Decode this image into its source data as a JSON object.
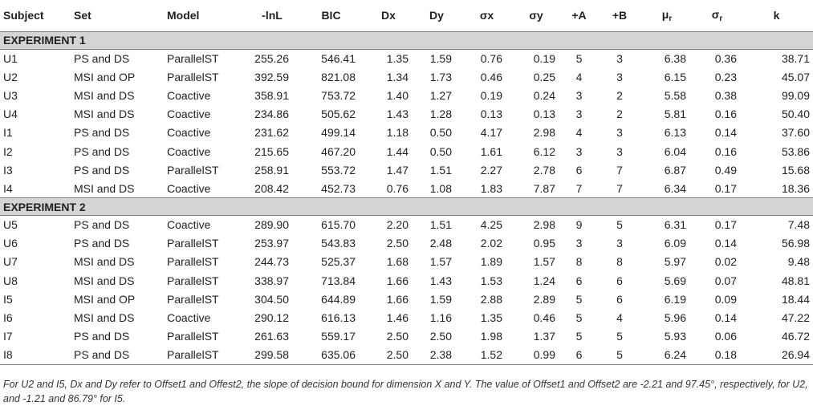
{
  "headers": {
    "subject": "Subject",
    "set": "Set",
    "model": "Model",
    "lnl": "-lnL",
    "bic": "BIC",
    "dx": "Dx",
    "dy": "Dy",
    "sx": "σx",
    "sy": "σy",
    "pa": "+A",
    "pb": "+B",
    "mu": "μ",
    "mu_sub": "r",
    "sr": "σ",
    "sr_sub": "r",
    "k": "k"
  },
  "sections": [
    {
      "title": "EXPERIMENT 1",
      "rows": [
        {
          "subject": "U1",
          "set": "PS and DS",
          "model": "ParallelST",
          "lnl": "255.26",
          "bic": "546.41",
          "dx": "1.35",
          "dy": "1.59",
          "sx": "0.76",
          "sy": "0.19",
          "pa": "5",
          "pb": "3",
          "mu": "6.38",
          "sr": "0.36",
          "k": "38.71"
        },
        {
          "subject": "U2",
          "set": "MSI and OP",
          "model": "ParallelST",
          "lnl": "392.59",
          "bic": "821.08",
          "dx": "1.34",
          "dy": "1.73",
          "sx": "0.46",
          "sy": "0.25",
          "pa": "4",
          "pb": "3",
          "mu": "6.15",
          "sr": "0.23",
          "k": "45.07"
        },
        {
          "subject": "U3",
          "set": "MSI and DS",
          "model": "Coactive",
          "lnl": "358.91",
          "bic": "753.72",
          "dx": "1.40",
          "dy": "1.27",
          "sx": "0.19",
          "sy": "0.24",
          "pa": "3",
          "pb": "2",
          "mu": "5.58",
          "sr": "0.38",
          "k": "99.09"
        },
        {
          "subject": "U4",
          "set": "MSI and DS",
          "model": "Coactive",
          "lnl": "234.86",
          "bic": "505.62",
          "dx": "1.43",
          "dy": "1.28",
          "sx": "0.13",
          "sy": "0.13",
          "pa": "3",
          "pb": "2",
          "mu": "5.81",
          "sr": "0.16",
          "k": "50.40"
        },
        {
          "subject": "I1",
          "set": "PS and DS",
          "model": "Coactive",
          "lnl": "231.62",
          "bic": "499.14",
          "dx": "1.18",
          "dy": "0.50",
          "sx": "4.17",
          "sy": "2.98",
          "pa": "4",
          "pb": "3",
          "mu": "6.13",
          "sr": "0.14",
          "k": "37.60"
        },
        {
          "subject": "I2",
          "set": "PS and DS",
          "model": "Coactive",
          "lnl": "215.65",
          "bic": "467.20",
          "dx": "1.44",
          "dy": "0.50",
          "sx": "1.61",
          "sy": "6.12",
          "pa": "3",
          "pb": "3",
          "mu": "6.04",
          "sr": "0.16",
          "k": "53.86"
        },
        {
          "subject": "I3",
          "set": "PS and DS",
          "model": "ParallelST",
          "lnl": "258.91",
          "bic": "553.72",
          "dx": "1.47",
          "dy": "1.51",
          "sx": "2.27",
          "sy": "2.78",
          "pa": "6",
          "pb": "7",
          "mu": "6.87",
          "sr": "0.49",
          "k": "15.68"
        },
        {
          "subject": "I4",
          "set": "MSI and DS",
          "model": "Coactive",
          "lnl": "208.42",
          "bic": "452.73",
          "dx": "0.76",
          "dy": "1.08",
          "sx": "1.83",
          "sy": "7.87",
          "pa": "7",
          "pb": "7",
          "mu": "6.34",
          "sr": "0.17",
          "k": "18.36"
        }
      ]
    },
    {
      "title": "EXPERIMENT 2",
      "rows": [
        {
          "subject": "U5",
          "set": "PS and DS",
          "model": "Coactive",
          "lnl": "289.90",
          "bic": "615.70",
          "dx": "2.20",
          "dy": "1.51",
          "sx": "4.25",
          "sy": "2.98",
          "pa": "9",
          "pb": "5",
          "mu": "6.31",
          "sr": "0.17",
          "k": "7.48"
        },
        {
          "subject": "U6",
          "set": "PS and DS",
          "model": "ParallelST",
          "lnl": "253.97",
          "bic": "543.83",
          "dx": "2.50",
          "dy": "2.48",
          "sx": "2.02",
          "sy": "0.95",
          "pa": "3",
          "pb": "3",
          "mu": "6.09",
          "sr": "0.14",
          "k": "56.98"
        },
        {
          "subject": "U7",
          "set": "MSI and DS",
          "model": "ParallelST",
          "lnl": "244.73",
          "bic": "525.37",
          "dx": "1.68",
          "dy": "1.57",
          "sx": "1.89",
          "sy": "1.57",
          "pa": "8",
          "pb": "8",
          "mu": "5.97",
          "sr": "0.02",
          "k": "9.48"
        },
        {
          "subject": "U8",
          "set": "MSI and DS",
          "model": "ParallelST",
          "lnl": "338.97",
          "bic": "713.84",
          "dx": "1.66",
          "dy": "1.43",
          "sx": "1.53",
          "sy": "1.24",
          "pa": "6",
          "pb": "6",
          "mu": "5.69",
          "sr": "0.07",
          "k": "48.81"
        },
        {
          "subject": "I5",
          "set": "MSI and OP",
          "model": "ParallelST",
          "lnl": "304.50",
          "bic": "644.89",
          "dx": "1.66",
          "dy": "1.59",
          "sx": "2.88",
          "sy": "2.89",
          "pa": "5",
          "pb": "6",
          "mu": "6.19",
          "sr": "0.09",
          "k": "18.44"
        },
        {
          "subject": "I6",
          "set": "MSI and DS",
          "model": "Coactive",
          "lnl": "290.12",
          "bic": "616.13",
          "dx": "1.46",
          "dy": "1.16",
          "sx": "1.35",
          "sy": "0.46",
          "pa": "5",
          "pb": "4",
          "mu": "5.96",
          "sr": "0.14",
          "k": "47.22"
        },
        {
          "subject": "I7",
          "set": "PS and DS",
          "model": "ParallelST",
          "lnl": "261.63",
          "bic": "559.17",
          "dx": "2.50",
          "dy": "2.50",
          "sx": "1.98",
          "sy": "1.37",
          "pa": "5",
          "pb": "5",
          "mu": "5.93",
          "sr": "0.06",
          "k": "46.72"
        },
        {
          "subject": "I8",
          "set": "PS and DS",
          "model": "ParallelST",
          "lnl": "299.58",
          "bic": "635.06",
          "dx": "2.50",
          "dy": "2.38",
          "sx": "1.52",
          "sy": "0.99",
          "pa": "6",
          "pb": "5",
          "mu": "6.24",
          "sr": "0.18",
          "k": "26.94"
        }
      ]
    }
  ],
  "note": "For U2 and I5, Dx and Dy refer to Offset1 and Offest2, the slope of decision bound for dimension X and Y. The value of Offset1 and Offset2 are -2.21 and 97.45°, respectively, for U2, and -1.21 and 86.79° for I5."
}
